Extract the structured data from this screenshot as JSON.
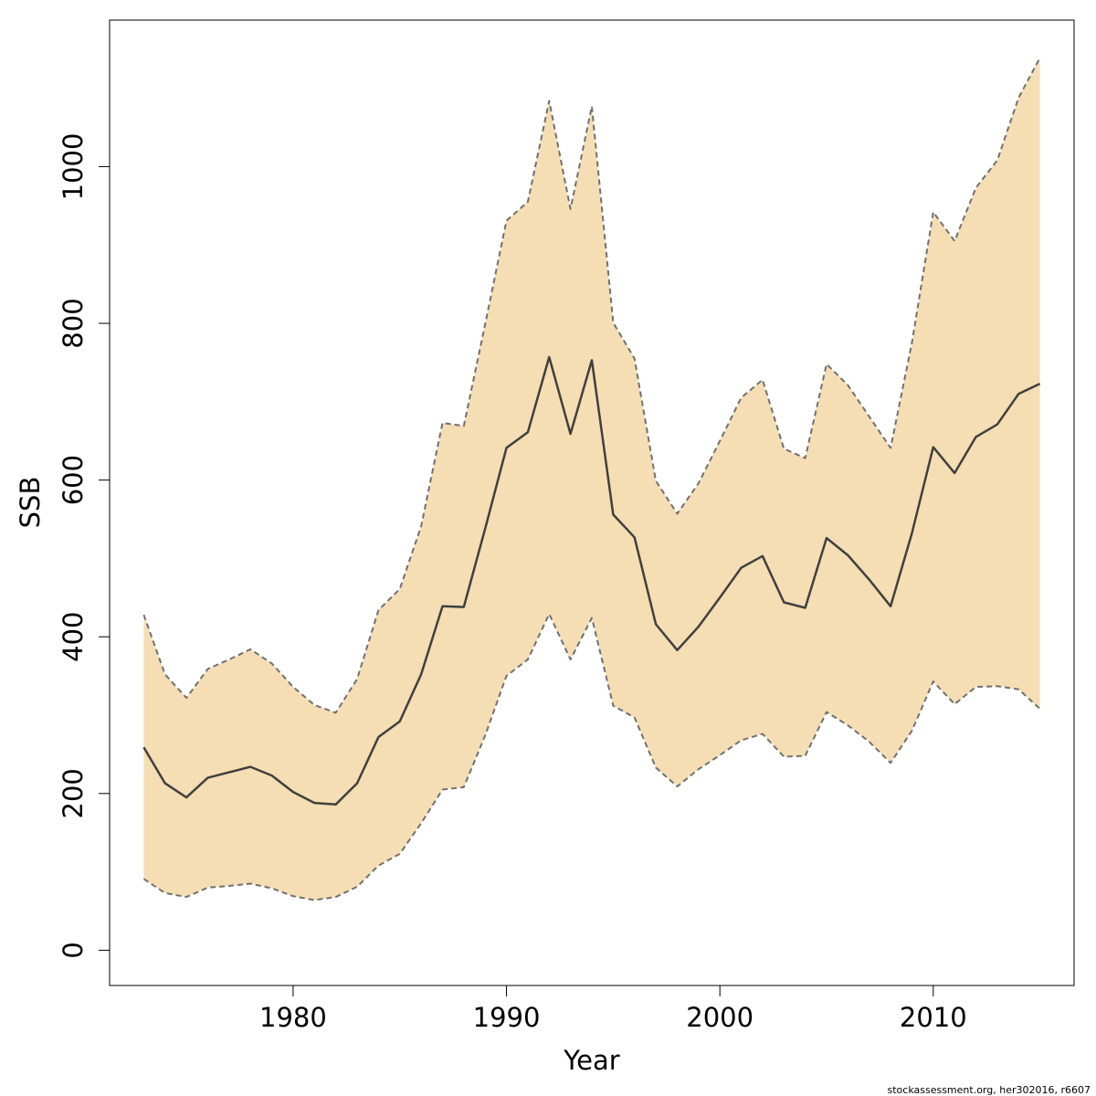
{
  "chart_data": {
    "type": "area",
    "xlabel": "Year",
    "ylabel": "SSB",
    "xlim": [
      1971.4,
      2016.6
    ],
    "ylim": [
      -45,
      1187
    ],
    "xticks": [
      1980,
      1990,
      2000,
      2010
    ],
    "yticks": [
      0,
      200,
      400,
      600,
      800,
      1000
    ],
    "grid": false,
    "legend": "none",
    "colors": {
      "band_fill": "#f5deb3",
      "median_line": "#404040",
      "bound_line": "#707070"
    },
    "x": [
      1973,
      1974,
      1975,
      1976,
      1977,
      1978,
      1979,
      1980,
      1981,
      1982,
      1983,
      1984,
      1985,
      1986,
      1987,
      1988,
      1989,
      1990,
      1991,
      1992,
      1993,
      1994,
      1995,
      1996,
      1997,
      1998,
      1999,
      2000,
      2001,
      2002,
      2003,
      2004,
      2005,
      2006,
      2007,
      2008,
      2009,
      2010,
      2011,
      2012,
      2013,
      2014,
      2015
    ],
    "series": [
      {
        "role": "median",
        "values": [
          259,
          213,
          195,
          220,
          227,
          234,
          223,
          202,
          188,
          186,
          213,
          272,
          292,
          352,
          439,
          438,
          538,
          641,
          661,
          757,
          659,
          753,
          556,
          527,
          416,
          383,
          413,
          450,
          488,
          503,
          444,
          437,
          526,
          504,
          473,
          439,
          532,
          642,
          609,
          655,
          671,
          710,
          723
        ]
      },
      {
        "role": "upper",
        "values": [
          428,
          352,
          322,
          359,
          371,
          384,
          366,
          336,
          313,
          303,
          346,
          434,
          461,
          541,
          673,
          669,
          799,
          931,
          955,
          1084,
          946,
          1077,
          801,
          755,
          599,
          557,
          596,
          650,
          705,
          728,
          640,
          628,
          748,
          721,
          681,
          641,
          775,
          942,
          905,
          973,
          1008,
          1088,
          1139
        ]
      },
      {
        "role": "lower",
        "values": [
          91,
          73,
          68,
          80,
          82,
          85,
          79,
          69,
          64,
          68,
          81,
          108,
          123,
          162,
          205,
          208,
          274,
          350,
          371,
          429,
          371,
          424,
          312,
          297,
          233,
          209,
          231,
          249,
          268,
          276,
          247,
          248,
          304,
          287,
          266,
          239,
          280,
          343,
          314,
          336,
          337,
          333,
          308
        ]
      }
    ]
  },
  "footer": {
    "credit": "stockassessment.org, her302016, r6607"
  }
}
